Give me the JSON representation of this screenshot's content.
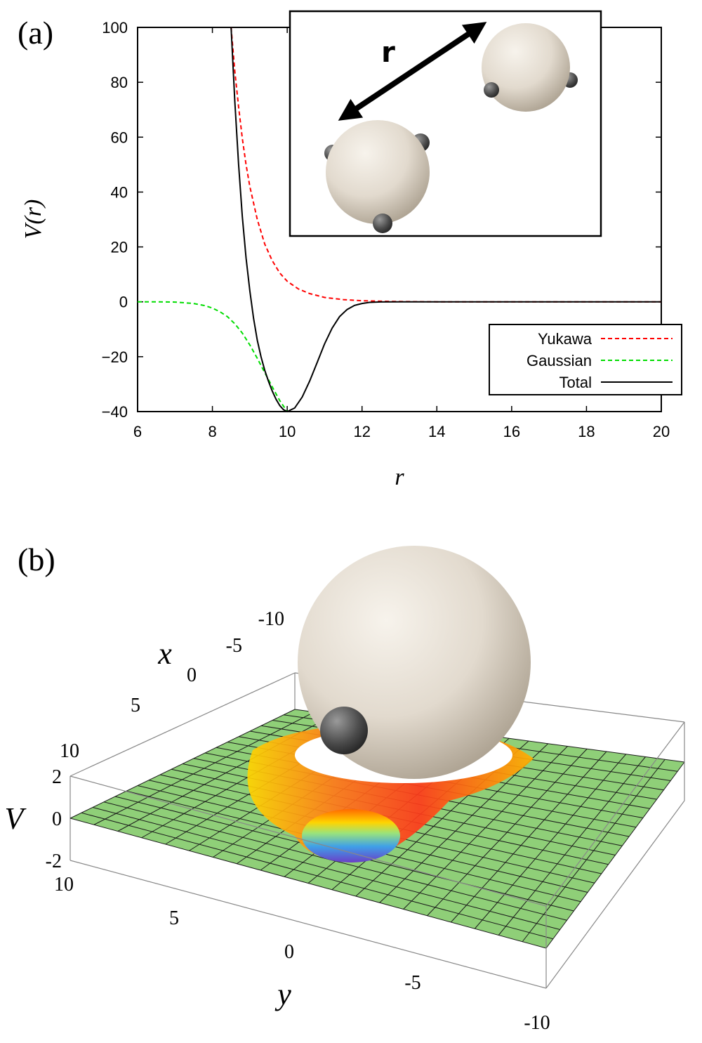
{
  "panel_a": {
    "label": "(a)",
    "inset_label": "r"
  },
  "panel_b": {
    "label": "(b)",
    "x_label": "x",
    "y_label": "y",
    "v_label": "V",
    "x_ticks": [
      "-10",
      "-5",
      "0",
      "5",
      "10"
    ],
    "y_ticks": [
      "10",
      "5",
      "0",
      "-5",
      "-10"
    ],
    "v_ticks": [
      "2",
      "0",
      "-2"
    ]
  },
  "chart_data": {
    "type": "line",
    "title": "",
    "xlabel": "r",
    "ylabel": "V(r)",
    "xlim": [
      6,
      20
    ],
    "ylim": [
      -40,
      100
    ],
    "xticks": [
      6,
      8,
      10,
      12,
      14,
      16,
      18,
      20
    ],
    "yticks": [
      -40,
      -20,
      0,
      20,
      40,
      60,
      80,
      100
    ],
    "xtick_labels": [
      "6",
      "8",
      "10",
      "12",
      "14",
      "16",
      "18",
      "20"
    ],
    "ytick_labels": [
      "−40",
      "−20",
      "0",
      "20",
      "40",
      "60",
      "80",
      "100"
    ],
    "legend_position": "bottom-right",
    "series": [
      {
        "name": "Yukawa",
        "color": "#ff0000",
        "style": "dashed",
        "x": [
          8.5,
          8.6,
          8.7,
          8.8,
          8.9,
          9.0,
          9.2,
          9.4,
          9.6,
          9.8,
          10.0,
          10.3,
          10.6,
          11.0,
          11.5,
          12.0,
          12.5,
          13,
          14,
          16,
          18,
          20
        ],
        "y": [
          100,
          84,
          71,
          59.5,
          50,
          42,
          30,
          21,
          15,
          10.5,
          7.5,
          4.7,
          3.0,
          1.6,
          0.8,
          0.4,
          0.2,
          0.1,
          0,
          0,
          0,
          0
        ]
      },
      {
        "name": "Gaussian",
        "color": "#00dd00",
        "style": "dashed",
        "x": [
          6,
          6.5,
          7.0,
          7.5,
          7.8,
          8.0,
          8.2,
          8.4,
          8.6,
          8.8,
          9.0,
          9.2,
          9.4,
          9.6,
          9.8,
          10.0
        ],
        "y": [
          0,
          0,
          -0.1,
          -0.6,
          -1.4,
          -2.3,
          -3.6,
          -5.4,
          -8.0,
          -11.4,
          -15.7,
          -20.6,
          -25.8,
          -31.0,
          -36.0,
          -40
        ]
      },
      {
        "name": "Total",
        "color": "#000000",
        "style": "solid",
        "x": [
          8.5,
          8.6,
          8.7,
          8.8,
          8.9,
          9.0,
          9.1,
          9.2,
          9.3,
          9.4,
          9.5,
          9.6,
          9.7,
          9.8,
          9.9,
          10.0,
          10.2,
          10.4,
          10.6,
          10.8,
          11.0,
          11.2,
          11.4,
          11.6,
          11.8,
          12.0,
          12.2,
          12.5,
          13.0,
          14.0,
          16.0,
          18.0,
          20.0
        ],
        "y": [
          100,
          73,
          50,
          31,
          16,
          4,
          -6,
          -14,
          -20,
          -25,
          -29,
          -32.5,
          -35.5,
          -37.8,
          -39.3,
          -40,
          -38.7,
          -34.7,
          -28.9,
          -22.1,
          -15.3,
          -9.6,
          -5.4,
          -2.8,
          -1.3,
          -0.6,
          -0.2,
          -0.05,
          0,
          0,
          0,
          0,
          0
        ]
      }
    ]
  }
}
